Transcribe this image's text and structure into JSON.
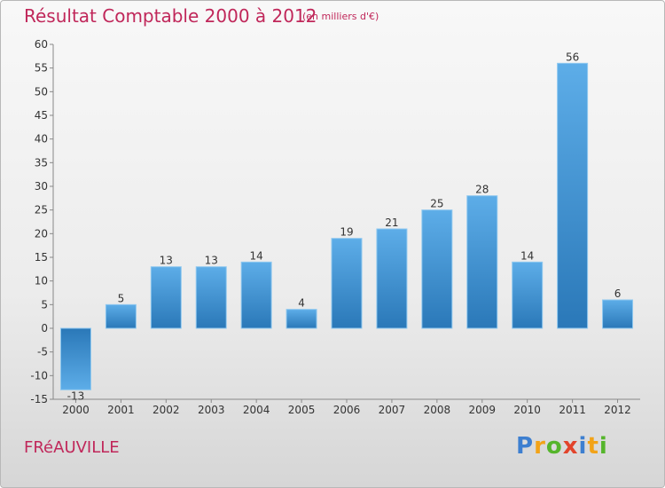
{
  "chart_data": {
    "type": "bar",
    "title": "Résultat Comptable 2000 à 2012",
    "subtitle": "(en milliers d'€)",
    "categories": [
      "2000",
      "2001",
      "2002",
      "2003",
      "2004",
      "2005",
      "2006",
      "2007",
      "2008",
      "2009",
      "2010",
      "2011",
      "2012"
    ],
    "values": [
      -13,
      5,
      13,
      13,
      14,
      4,
      19,
      21,
      25,
      28,
      14,
      56,
      6
    ],
    "ylim": [
      -15,
      60
    ],
    "yticks": [
      60,
      55,
      50,
      45,
      40,
      35,
      30,
      25,
      20,
      15,
      10,
      5,
      0,
      -5,
      -10,
      -15
    ],
    "xlabel": "",
    "ylabel": "",
    "grid": false
  },
  "place": "FRéAUVILLE",
  "brand": {
    "letters": [
      "P",
      "r",
      "o",
      "x",
      "i",
      "t",
      "i"
    ]
  },
  "colors": {
    "title": "#c0275a",
    "bar_light": "#5dade8",
    "bar_dark": "#2a78b8"
  }
}
